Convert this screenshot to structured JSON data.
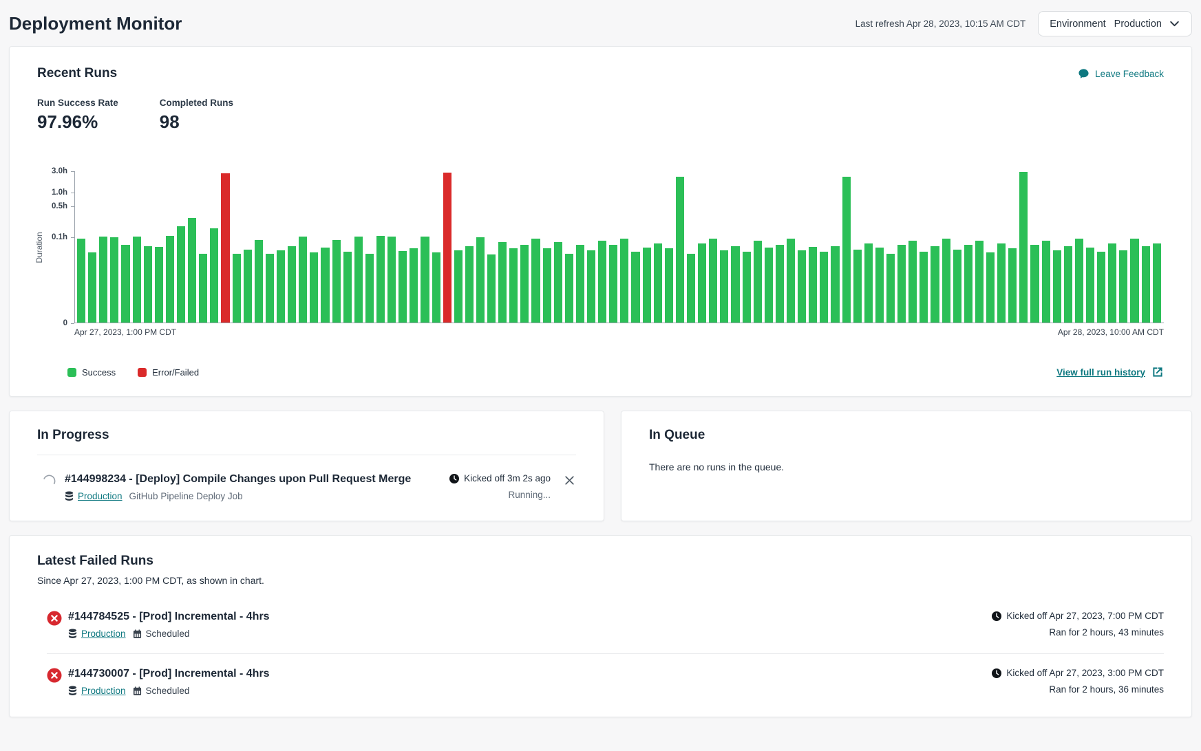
{
  "header": {
    "title": "Deployment Monitor",
    "last_refresh": "Last refresh Apr 28, 2023, 10:15 AM CDT",
    "environment_label": "Environment",
    "environment_value": "Production"
  },
  "recent_runs": {
    "title": "Recent Runs",
    "feedback_label": "Leave Feedback",
    "stats": [
      {
        "label": "Run Success Rate",
        "value": "97.96%"
      },
      {
        "label": "Completed Runs",
        "value": "98"
      }
    ],
    "view_history_label": "View full run history"
  },
  "chart_data": {
    "type": "bar",
    "ylabel": "Duration",
    "unit": "hours",
    "scale": "log",
    "yticks": [
      {
        "label": "3.0h",
        "value": 3.0
      },
      {
        "label": "1.0h",
        "value": 1.0
      },
      {
        "label": "0.5h",
        "value": 0.5
      },
      {
        "label": "0.1h",
        "value": 0.1
      },
      {
        "label": "0",
        "value": 0
      }
    ],
    "x_start_label": "Apr 27, 2023, 1:00 PM CDT",
    "x_end_label": "Apr 28, 2023, 10:00 AM CDT",
    "values": [
      0.09,
      0.045,
      0.1,
      0.095,
      0.065,
      0.1,
      0.062,
      0.058,
      0.105,
      0.17,
      0.26,
      0.042,
      0.155,
      2.6,
      0.042,
      0.052,
      0.085,
      0.042,
      0.05,
      0.06,
      0.1,
      0.044,
      0.056,
      0.085,
      0.046,
      0.1,
      0.042,
      0.105,
      0.1,
      0.048,
      0.054,
      0.1,
      0.044,
      2.72,
      0.05,
      0.062,
      0.095,
      0.04,
      0.075,
      0.055,
      0.066,
      0.09,
      0.055,
      0.075,
      0.042,
      0.065,
      0.05,
      0.08,
      0.065,
      0.09,
      0.046,
      0.056,
      0.07,
      0.055,
      2.2,
      0.042,
      0.07,
      0.09,
      0.05,
      0.062,
      0.046,
      0.08,
      0.056,
      0.066,
      0.09,
      0.05,
      0.058,
      0.046,
      0.062,
      2.2,
      0.052,
      0.07,
      0.056,
      0.042,
      0.066,
      0.08,
      0.046,
      0.06,
      0.09,
      0.052,
      0.065,
      0.08,
      0.045,
      0.07,
      0.055,
      2.8,
      0.065,
      0.08,
      0.05,
      0.062,
      0.09,
      0.056,
      0.046,
      0.07,
      0.05,
      0.09,
      0.06,
      0.07
    ],
    "error_indices": [
      13,
      33
    ],
    "colors": {
      "success": "#2bbf57",
      "error": "#da2a2a"
    },
    "legend": [
      {
        "label": "Success",
        "color": "#2bbf57"
      },
      {
        "label": "Error/Failed",
        "color": "#da2a2a"
      }
    ]
  },
  "in_progress": {
    "title": "In Progress",
    "run": {
      "title": "#144998234 - [Deploy] Compile Changes upon Pull Request Merge",
      "environment": "Production",
      "job": "GitHub Pipeline Deploy Job",
      "kicked_off": "Kicked off 3m 2s ago",
      "status": "Running..."
    }
  },
  "in_queue": {
    "title": "In Queue",
    "empty_message": "There are no runs in the queue."
  },
  "failed_runs": {
    "title": "Latest Failed Runs",
    "subtitle": "Since Apr 27, 2023, 1:00 PM CDT, as shown in chart.",
    "items": [
      {
        "title": "#144784525 - [Prod] Incremental - 4hrs",
        "environment": "Production",
        "schedule": "Scheduled",
        "kicked_off": "Kicked off Apr 27, 2023, 7:00 PM CDT",
        "duration": "Ran for 2 hours, 43 minutes"
      },
      {
        "title": "#144730007 - [Prod] Incremental - 4hrs",
        "environment": "Production",
        "schedule": "Scheduled",
        "kicked_off": "Kicked off Apr 27, 2023, 3:00 PM CDT",
        "duration": "Ran for 2 hours, 36 minutes"
      }
    ]
  }
}
